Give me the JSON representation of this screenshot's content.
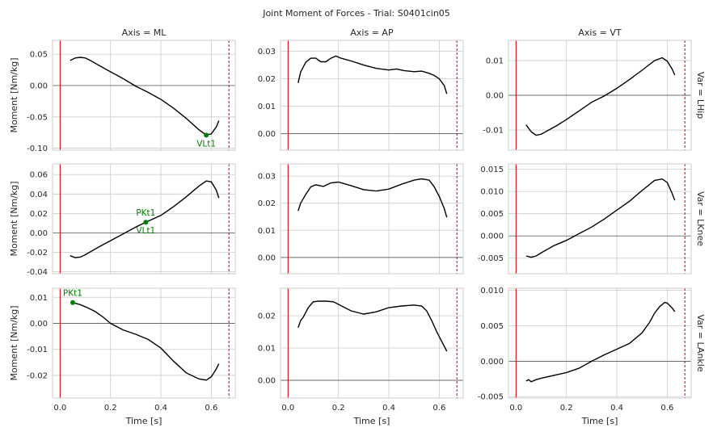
{
  "title": "Joint Moment of Forces - Trial: S0401cin05",
  "columns": [
    "Axis = ML",
    "Axis = AP",
    "Axis = VT"
  ],
  "rows": [
    "Var = LHip",
    "Var = LKnee",
    "Var = LAnkle"
  ],
  "ylabel": "Moment [Nm/kg]",
  "xlabel": "Time [s]",
  "colors": {
    "curve": "#000000",
    "event_line": "#cc0000",
    "annotation": "#008000",
    "grid": "#cccccc"
  },
  "chart_data": {
    "type": "line",
    "grid": true,
    "shared_x": true,
    "xlim": [
      -0.03,
      0.695
    ],
    "xticks": [
      0.0,
      0.2,
      0.4,
      0.6
    ],
    "xtick_labels": [
      "0.0",
      "0.2",
      "0.4",
      "0.6"
    ],
    "event_lines": [
      {
        "x": 0.0,
        "style": "solid"
      },
      {
        "x": 0.67,
        "style": "dashed"
      }
    ],
    "panels": [
      {
        "row": "Var = LHip",
        "col": "Axis = ML",
        "ylim": [
          -0.103,
          0.072
        ],
        "yticks": [
          -0.1,
          -0.05,
          0.0,
          0.05
        ],
        "ytick_labels": [
          "-0.10",
          "-0.05",
          "0.00",
          "0.05"
        ],
        "x": [
          0.04,
          0.06,
          0.08,
          0.1,
          0.12,
          0.15,
          0.2,
          0.25,
          0.3,
          0.35,
          0.4,
          0.45,
          0.5,
          0.55,
          0.58,
          0.6,
          0.62,
          0.63
        ],
        "y": [
          0.04,
          0.044,
          0.045,
          0.044,
          0.04,
          0.033,
          0.022,
          0.011,
          -0.001,
          -0.011,
          -0.022,
          -0.036,
          -0.052,
          -0.07,
          -0.079,
          -0.077,
          -0.066,
          -0.056
        ],
        "annotations": [
          {
            "label": "VLt1",
            "x": 0.58,
            "y": -0.079
          }
        ]
      },
      {
        "row": "Var = LHip",
        "col": "Axis = AP",
        "ylim": [
          -0.006,
          0.034
        ],
        "yticks": [
          0.0,
          0.01,
          0.02,
          0.03
        ],
        "ytick_labels": [
          "0.00",
          "0.01",
          "0.02",
          "0.03"
        ],
        "x": [
          0.04,
          0.05,
          0.07,
          0.09,
          0.11,
          0.13,
          0.15,
          0.17,
          0.19,
          0.21,
          0.25,
          0.3,
          0.35,
          0.4,
          0.43,
          0.46,
          0.5,
          0.53,
          0.56,
          0.58,
          0.6,
          0.62,
          0.63
        ],
        "y": [
          0.0185,
          0.0225,
          0.026,
          0.0275,
          0.0275,
          0.0262,
          0.0262,
          0.0275,
          0.0283,
          0.0275,
          0.0265,
          0.025,
          0.0238,
          0.0232,
          0.0236,
          0.023,
          0.0226,
          0.0228,
          0.022,
          0.0212,
          0.02,
          0.0175,
          0.0145
        ],
        "annotations": []
      },
      {
        "row": "Var = LHip",
        "col": "Axis = VT",
        "ylim": [
          -0.0158,
          0.0158
        ],
        "yticks": [
          -0.01,
          0.0,
          0.01
        ],
        "ytick_labels": [
          "-0.01",
          "0.00",
          "0.01"
        ],
        "x": [
          0.04,
          0.06,
          0.08,
          0.1,
          0.13,
          0.16,
          0.2,
          0.25,
          0.3,
          0.35,
          0.4,
          0.45,
          0.5,
          0.55,
          0.58,
          0.6,
          0.62,
          0.63
        ],
        "y": [
          -0.0085,
          -0.0105,
          -0.0115,
          -0.0112,
          -0.01,
          -0.0088,
          -0.007,
          -0.0045,
          -0.002,
          -0.0002,
          0.002,
          0.0045,
          0.0072,
          0.01,
          0.0108,
          0.0098,
          0.0075,
          0.0058
        ],
        "annotations": []
      },
      {
        "row": "Var = LKnee",
        "col": "Axis = ML",
        "ylim": [
          -0.042,
          0.071
        ],
        "yticks": [
          -0.04,
          -0.02,
          0.0,
          0.02,
          0.04,
          0.06
        ],
        "ytick_labels": [
          "-0.04",
          "-0.02",
          "0.00",
          "0.02",
          "0.04",
          "0.06"
        ],
        "x": [
          0.04,
          0.06,
          0.08,
          0.1,
          0.15,
          0.2,
          0.25,
          0.3,
          0.34,
          0.4,
          0.45,
          0.5,
          0.55,
          0.58,
          0.6,
          0.62,
          0.63
        ],
        "y": [
          -0.0235,
          -0.0255,
          -0.025,
          -0.0225,
          -0.015,
          -0.008,
          -0.001,
          0.006,
          0.011,
          0.018,
          0.027,
          0.037,
          0.048,
          0.0535,
          0.0525,
          0.044,
          0.036
        ],
        "annotations": [
          {
            "label": "PKt1",
            "x": 0.34,
            "y": 0.011,
            "label_pos": "above"
          },
          {
            "label": "VLt1",
            "x": 0.34,
            "y": 0.011,
            "label_pos": "below"
          }
        ]
      },
      {
        "row": "Var = LKnee",
        "col": "Axis = AP",
        "ylim": [
          -0.006,
          0.0345
        ],
        "yticks": [
          0.0,
          0.01,
          0.02,
          0.03
        ],
        "ytick_labels": [
          "0.00",
          "0.01",
          "0.02",
          "0.03"
        ],
        "x": [
          0.04,
          0.05,
          0.07,
          0.09,
          0.11,
          0.14,
          0.17,
          0.2,
          0.25,
          0.3,
          0.35,
          0.4,
          0.45,
          0.5,
          0.53,
          0.56,
          0.58,
          0.6,
          0.62,
          0.63
        ],
        "y": [
          0.0172,
          0.02,
          0.0232,
          0.026,
          0.0268,
          0.0262,
          0.0275,
          0.0278,
          0.0265,
          0.025,
          0.0245,
          0.0252,
          0.027,
          0.0285,
          0.029,
          0.0285,
          0.026,
          0.0225,
          0.018,
          0.0148
        ],
        "annotations": []
      },
      {
        "row": "Var = LKnee",
        "col": "Axis = VT",
        "ylim": [
          -0.0085,
          0.0162
        ],
        "yticks": [
          -0.005,
          0.0,
          0.005,
          0.01,
          0.015
        ],
        "ytick_labels": [
          "-0.005",
          "0.000",
          "0.005",
          "0.010",
          "0.015"
        ],
        "x": [
          0.04,
          0.06,
          0.08,
          0.1,
          0.15,
          0.2,
          0.25,
          0.3,
          0.35,
          0.4,
          0.45,
          0.5,
          0.55,
          0.58,
          0.6,
          0.62,
          0.63
        ],
        "y": [
          -0.0045,
          -0.0048,
          -0.0045,
          -0.0038,
          -0.0022,
          -0.001,
          0.0005,
          0.002,
          0.0038,
          0.0058,
          0.0078,
          0.0102,
          0.0125,
          0.0128,
          0.012,
          0.0095,
          0.008
        ],
        "annotations": []
      },
      {
        "row": "Var = LAnkle",
        "col": "Axis = ML",
        "ylim": [
          -0.0287,
          0.0135
        ],
        "yticks": [
          -0.02,
          -0.01,
          0.0,
          0.01
        ],
        "ytick_labels": [
          "-0.02",
          "-0.01",
          "0.00",
          "0.01"
        ],
        "x": [
          0.05,
          0.08,
          0.11,
          0.14,
          0.17,
          0.2,
          0.25,
          0.3,
          0.35,
          0.4,
          0.45,
          0.5,
          0.55,
          0.58,
          0.6,
          0.62,
          0.63
        ],
        "y": [
          0.008,
          0.0072,
          0.006,
          0.0045,
          0.0025,
          0.0,
          -0.0025,
          -0.0042,
          -0.0062,
          -0.0095,
          -0.0145,
          -0.019,
          -0.0213,
          -0.0218,
          -0.0205,
          -0.0175,
          -0.0155
        ],
        "annotations": [
          {
            "label": "PKt1",
            "x": 0.05,
            "y": 0.008
          }
        ]
      },
      {
        "row": "Var = LAnkle",
        "col": "Axis = AP",
        "ylim": [
          -0.0055,
          0.0285
        ],
        "yticks": [
          0.0,
          0.01,
          0.02
        ],
        "ytick_labels": [
          "0.00",
          "0.01",
          "0.02"
        ],
        "x": [
          0.04,
          0.05,
          0.06,
          0.08,
          0.1,
          0.12,
          0.15,
          0.18,
          0.2,
          0.25,
          0.3,
          0.35,
          0.4,
          0.45,
          0.5,
          0.53,
          0.55,
          0.57,
          0.59,
          0.61,
          0.63
        ],
        "y": [
          0.0163,
          0.0185,
          0.0195,
          0.0225,
          0.0243,
          0.0245,
          0.0245,
          0.0243,
          0.0235,
          0.0215,
          0.0205,
          0.0212,
          0.0225,
          0.023,
          0.0233,
          0.023,
          0.0215,
          0.0185,
          0.015,
          0.012,
          0.009
        ],
        "annotations": []
      },
      {
        "row": "Var = LAnkle",
        "col": "Axis = VT",
        "ylim": [
          -0.0052,
          0.0103
        ],
        "yticks": [
          -0.005,
          0.0,
          0.005,
          0.01
        ],
        "ytick_labels": [
          "-0.005",
          "0.000",
          "0.005",
          "0.010"
        ],
        "x": [
          0.04,
          0.05,
          0.06,
          0.08,
          0.1,
          0.15,
          0.2,
          0.25,
          0.3,
          0.35,
          0.4,
          0.45,
          0.5,
          0.53,
          0.55,
          0.57,
          0.59,
          0.6,
          0.62,
          0.63
        ],
        "y": [
          -0.0028,
          -0.0026,
          -0.0029,
          -0.0026,
          -0.0024,
          -0.002,
          -0.0016,
          -0.001,
          0.0,
          0.0009,
          0.0017,
          0.0025,
          0.004,
          0.0055,
          0.0068,
          0.0077,
          0.0083,
          0.0082,
          0.0075,
          0.007
        ],
        "annotations": []
      }
    ]
  }
}
